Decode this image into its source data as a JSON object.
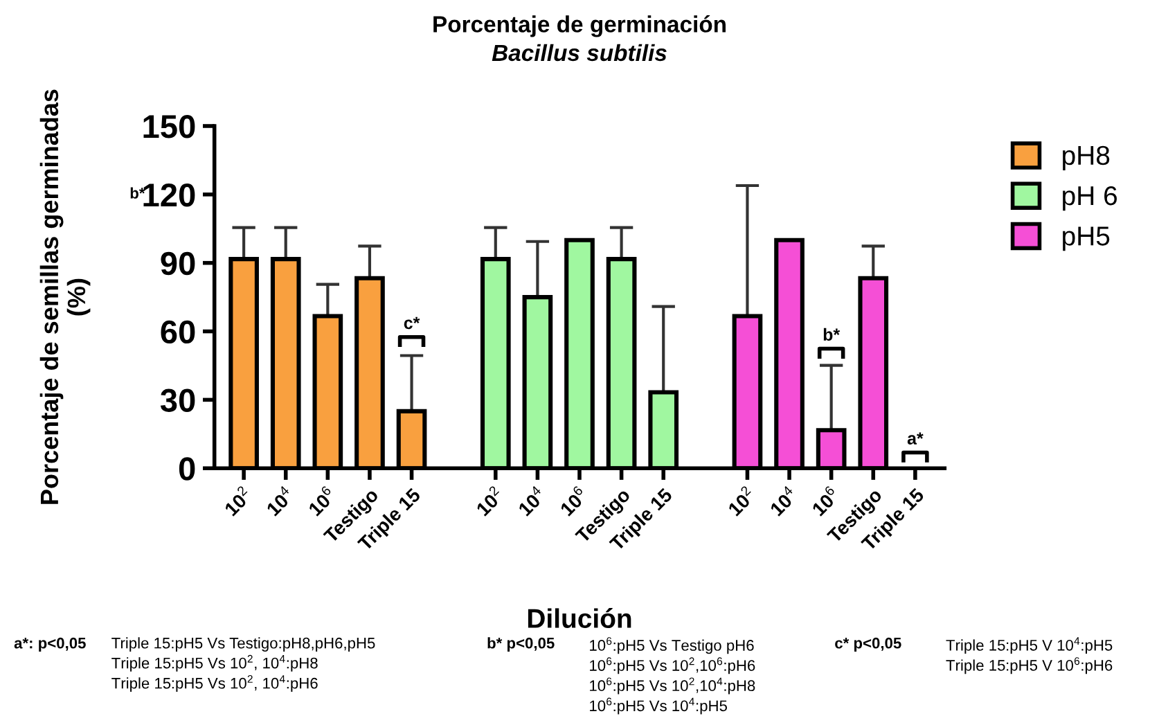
{
  "chart_data": {
    "type": "bar",
    "title": "Porcentaje de germinación",
    "subtitle": "Bacillus subtilis",
    "xlabel": "Dilución",
    "ylabel": "Porcentaje de semillas germinadas\n(%)",
    "categories": [
      "10$^{2}$",
      "10$^{4}$",
      "10$^{6}$",
      "Testigo",
      "Triple 15",
      null,
      "10$^{2}$",
      "10$^{4}$",
      "10$^{6}$",
      "Testigo",
      "Triple 15",
      null,
      "10$^{2}$",
      "10$^{4}$",
      "10$^{6}$",
      "Testigo",
      "Triple 15"
    ],
    "series": [
      {
        "name": "pH8",
        "color": "#f9a03f",
        "values": [
          91.7,
          91.7,
          66.7,
          83.3,
          25,
          null,
          null,
          null,
          null,
          null,
          null,
          null,
          null,
          null,
          null,
          null,
          null
        ],
        "errors": [
          [
            91.7,
            105.5
          ],
          [
            91.7,
            105.5
          ],
          [
            66.7,
            80.6
          ],
          [
            83.3,
            97.4
          ],
          [
            25,
            49.4
          ],
          null,
          null,
          null,
          null,
          null,
          null,
          null,
          null,
          null,
          null,
          null,
          null
        ]
      },
      {
        "name": "pH 6",
        "color": "#a0f7a0",
        "values": [
          null,
          null,
          null,
          null,
          null,
          null,
          91.7,
          75,
          100,
          91.7,
          33.3,
          null,
          null,
          null,
          null,
          null,
          null
        ],
        "errors": [
          null,
          null,
          null,
          null,
          null,
          null,
          [
            91.7,
            105.5
          ],
          [
            75,
            99.4
          ],
          null,
          [
            91.7,
            105.5
          ],
          [
            33.3,
            70.9
          ],
          null,
          null,
          null,
          null,
          null,
          null
        ]
      },
      {
        "name": "pH5",
        "color": "#f54fd6",
        "values": [
          null,
          null,
          null,
          null,
          null,
          null,
          null,
          null,
          null,
          null,
          null,
          null,
          66.7,
          100,
          16.7,
          83.3,
          0
        ],
        "errors": [
          null,
          null,
          null,
          null,
          null,
          null,
          null,
          null,
          null,
          null,
          null,
          null,
          [
            66.7,
            123.9
          ],
          null,
          [
            16.7,
            45.1
          ],
          [
            83.3,
            97.4
          ],
          null
        ]
      }
    ],
    "ylim": [
      0,
      150
    ],
    "yticks": [
      0,
      30,
      60,
      90,
      120,
      150
    ],
    "grid": false,
    "legend": "top right",
    "annotations": [
      "c*",
      "b*",
      "a*",
      "b*",
      "a*: p<0,05",
      "Triple 15:pH5 Vs Testigo:pH8,pH6,pH5\nTriple 15:pH5 Vs 10$^{2}$, 10$^{4}$:pH8\nTriple 15:pH5 Vs 10$^{2}$, 10$^{4}$:pH6",
      "b* p<0,05",
      "10$^{6}$:pH5 Vs Testigo pH6\n10$^{6}$:pH5 Vs 10$^{2}$,10$^{6}$:pH6\n10$^{6}$:pH5 Vs 10$^{2}$,10$^{4}$:pH8\n10$^{6}$:pH5 Vs 10$^{4}$:pH5",
      "c* p<0,05",
      "Triple 15:pH5 V 10$^{4}$:pH5\nTriple 15:pH5 V 10$^{6}$:pH6"
    ]
  }
}
